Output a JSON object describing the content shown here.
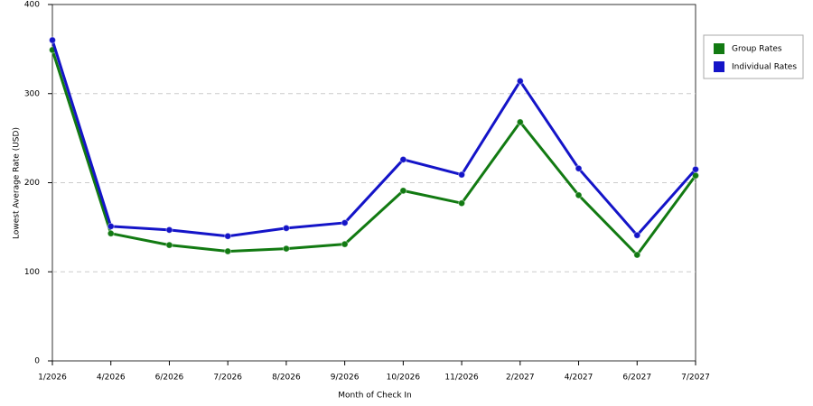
{
  "chart_data": {
    "type": "line",
    "x_label": "Month of Check In",
    "y_label": "Lowest Average Rate (USD)",
    "categories": [
      "1/2026",
      "4/2026",
      "6/2026",
      "7/2026",
      "8/2026",
      "9/2026",
      "10/2026",
      "11/2026",
      "2/2027",
      "4/2027",
      "6/2027",
      "7/2027"
    ],
    "series": [
      {
        "name": "Group Rates",
        "color": "#127a12",
        "values": [
          349,
          143,
          130,
          123,
          126,
          131,
          191,
          177,
          268,
          186,
          119,
          208
        ]
      },
      {
        "name": "Individual Rates",
        "color": "#1414c8",
        "values": [
          360,
          151,
          147,
          140,
          149,
          155,
          226,
          209,
          314,
          216,
          141,
          215
        ]
      }
    ],
    "ylim": [
      0,
      400
    ],
    "yticks": [
      0,
      100,
      200,
      300,
      400
    ],
    "grid": true,
    "legend": "right"
  }
}
